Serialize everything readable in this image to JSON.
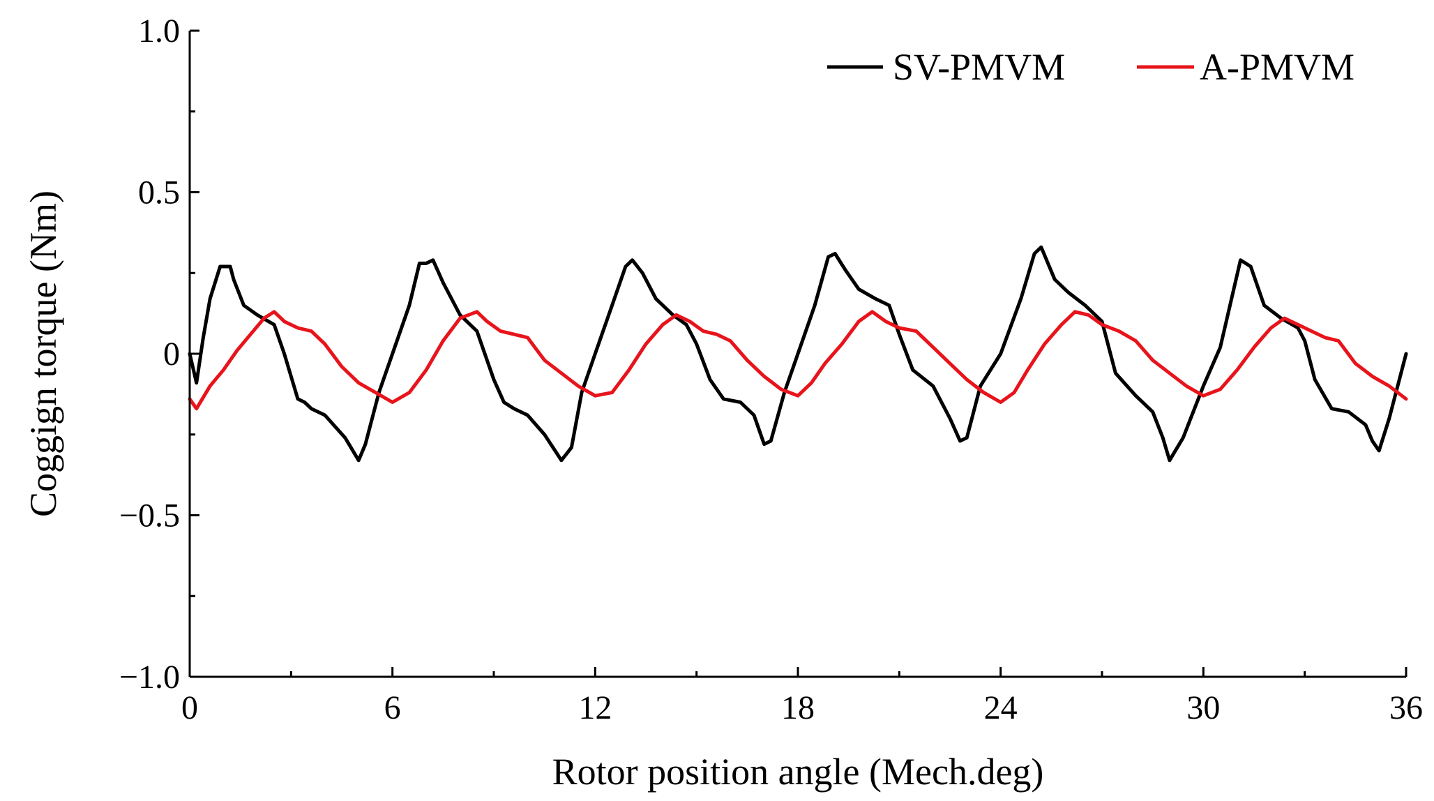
{
  "chart_data": {
    "type": "line",
    "title": "",
    "xlabel": "Rotor position angle (Mech.deg)",
    "ylabel": "Coggign torque (Nm)",
    "xlim": [
      0,
      36
    ],
    "ylim": [
      -1.0,
      1.0
    ],
    "xticks": [
      0,
      6,
      12,
      18,
      24,
      30,
      36
    ],
    "xtick_labels": [
      "0",
      "6",
      "12",
      "18",
      "24",
      "30",
      "36"
    ],
    "yticks": [
      -1.0,
      -0.5,
      0,
      0.5,
      1.0
    ],
    "ytick_labels": [
      "−1.0",
      "−0.5",
      "0",
      "0.5",
      "1.0"
    ],
    "grid": false,
    "legend_position": "top-right",
    "series": [
      {
        "name": "SV-PMVM",
        "color": "#000000",
        "x": [
          0,
          0.2,
          0.4,
          0.6,
          0.9,
          1.2,
          1.3,
          1.6,
          2.0,
          2.5,
          2.8,
          3.2,
          3.4,
          3.6,
          4.0,
          4.6,
          5.0,
          5.2,
          5.6,
          6.0,
          6.5,
          6.8,
          7.0,
          7.2,
          7.5,
          8.0,
          8.5,
          9.0,
          9.3,
          9.6,
          10.0,
          10.5,
          11.0,
          11.3,
          11.6,
          12.0,
          12.5,
          12.9,
          13.1,
          13.4,
          13.8,
          14.3,
          14.7,
          15.0,
          15.4,
          15.8,
          16.3,
          16.7,
          17.0,
          17.2,
          17.6,
          18.0,
          18.5,
          18.9,
          19.1,
          19.4,
          19.8,
          20.3,
          20.7,
          21.0,
          21.4,
          22.0,
          22.5,
          22.8,
          23.0,
          23.4,
          24.0,
          24.6,
          25.0,
          25.2,
          25.6,
          26.0,
          26.5,
          27.0,
          27.4,
          28.0,
          28.5,
          28.8,
          29.0,
          29.4,
          30.0,
          30.5,
          30.9,
          31.1,
          31.4,
          31.8,
          32.3,
          32.8,
          33.0,
          33.3,
          33.8,
          34.3,
          34.8,
          35.0,
          35.2,
          35.5,
          36.0
        ],
        "y": [
          0.0,
          -0.09,
          0.05,
          0.17,
          0.27,
          0.27,
          0.23,
          0.15,
          0.12,
          0.09,
          0.0,
          -0.14,
          -0.15,
          -0.17,
          -0.19,
          -0.26,
          -0.33,
          -0.28,
          -0.12,
          0.0,
          0.15,
          0.28,
          0.28,
          0.29,
          0.22,
          0.12,
          0.07,
          -0.08,
          -0.15,
          -0.17,
          -0.19,
          -0.25,
          -0.33,
          -0.29,
          -0.12,
          0.0,
          0.15,
          0.27,
          0.29,
          0.25,
          0.17,
          0.12,
          0.09,
          0.03,
          -0.08,
          -0.14,
          -0.15,
          -0.19,
          -0.28,
          -0.27,
          -0.12,
          0.0,
          0.15,
          0.3,
          0.31,
          0.26,
          0.2,
          0.17,
          0.15,
          0.06,
          -0.05,
          -0.1,
          -0.2,
          -0.27,
          -0.26,
          -0.1,
          0.0,
          0.17,
          0.31,
          0.33,
          0.23,
          0.19,
          0.15,
          0.1,
          -0.06,
          -0.13,
          -0.18,
          -0.26,
          -0.33,
          -0.26,
          -0.1,
          0.02,
          0.2,
          0.29,
          0.27,
          0.15,
          0.11,
          0.08,
          0.04,
          -0.08,
          -0.17,
          -0.18,
          -0.22,
          -0.27,
          -0.3,
          -0.2,
          0.0
        ]
      },
      {
        "name": "A-PMVM",
        "color": "#e8141b",
        "x": [
          0,
          0.2,
          0.6,
          1.0,
          1.4,
          1.8,
          2.2,
          2.5,
          2.8,
          3.2,
          3.6,
          4.0,
          4.5,
          5.0,
          5.5,
          6.0,
          6.5,
          7.0,
          7.5,
          8.0,
          8.5,
          8.8,
          9.2,
          9.6,
          10.0,
          10.5,
          11.0,
          11.5,
          12.0,
          12.5,
          13.0,
          13.5,
          14.0,
          14.4,
          14.8,
          15.2,
          15.6,
          16.0,
          16.5,
          17.0,
          17.5,
          18.0,
          18.4,
          18.8,
          19.3,
          19.8,
          20.2,
          20.6,
          21.0,
          21.5,
          22.0,
          22.5,
          23.0,
          23.5,
          24.0,
          24.4,
          24.8,
          25.3,
          25.8,
          26.2,
          26.6,
          27.0,
          27.5,
          28.0,
          28.5,
          29.0,
          29.5,
          30.0,
          30.5,
          31.0,
          31.5,
          32.0,
          32.4,
          32.8,
          33.2,
          33.6,
          34.0,
          34.5,
          35.0,
          35.5,
          36.0
        ],
        "y": [
          -0.14,
          -0.17,
          -0.1,
          -0.05,
          0.01,
          0.06,
          0.11,
          0.13,
          0.1,
          0.08,
          0.07,
          0.03,
          -0.04,
          -0.09,
          -0.12,
          -0.15,
          -0.12,
          -0.05,
          0.04,
          0.11,
          0.13,
          0.1,
          0.07,
          0.06,
          0.05,
          -0.02,
          -0.06,
          -0.1,
          -0.13,
          -0.12,
          -0.05,
          0.03,
          0.09,
          0.12,
          0.1,
          0.07,
          0.06,
          0.04,
          -0.02,
          -0.07,
          -0.11,
          -0.13,
          -0.09,
          -0.03,
          0.03,
          0.1,
          0.13,
          0.1,
          0.08,
          0.07,
          0.02,
          -0.03,
          -0.08,
          -0.12,
          -0.15,
          -0.12,
          -0.05,
          0.03,
          0.09,
          0.13,
          0.12,
          0.09,
          0.07,
          0.04,
          -0.02,
          -0.06,
          -0.1,
          -0.13,
          -0.11,
          -0.05,
          0.02,
          0.08,
          0.11,
          0.09,
          0.07,
          0.05,
          0.04,
          -0.03,
          -0.07,
          -0.1,
          -0.14
        ]
      }
    ]
  }
}
